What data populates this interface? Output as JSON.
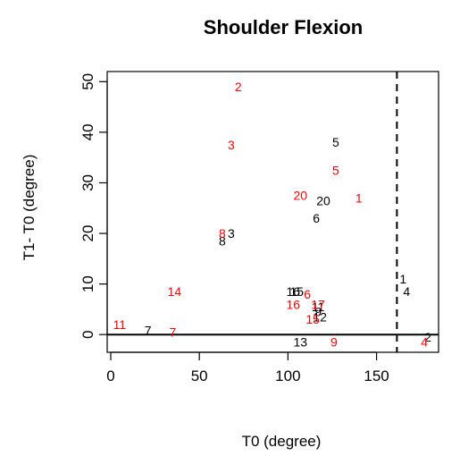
{
  "chart_data": {
    "type": "scatter",
    "title": "Shoulder Flexion",
    "xlabel": "T0 (degree)",
    "ylabel": "T1- T0 (degree)",
    "xlim": [
      -2,
      185
    ],
    "ylim": [
      -3.5,
      52
    ],
    "xticks": [
      "0",
      "50",
      "100",
      "150"
    ],
    "xtick_values": [
      0,
      50,
      100,
      150
    ],
    "yticks": [
      "0",
      "10",
      "20",
      "30",
      "40",
      "50"
    ],
    "ytick_values": [
      0,
      10,
      20,
      30,
      40,
      50
    ],
    "grid": false,
    "reference_lines": [
      {
        "orientation": "horizontal",
        "value": 0,
        "style": "solid"
      },
      {
        "orientation": "vertical",
        "value": 161.5,
        "style": "dashed"
      }
    ],
    "colors": {
      "group_black": "#000000",
      "group_red": "#ff0000"
    },
    "series": [
      {
        "color": "#000000",
        "points": [
          {
            "label": "1",
            "x": 165,
            "y": 11
          },
          {
            "label": "2",
            "x": 179,
            "y": -0.5
          },
          {
            "label": "3",
            "x": 68,
            "y": 20
          },
          {
            "label": "4",
            "x": 167,
            "y": 8.5
          },
          {
            "label": "5",
            "x": 127,
            "y": 38
          },
          {
            "label": "6",
            "x": 116,
            "y": 23
          },
          {
            "label": "7",
            "x": 21,
            "y": 0.8
          },
          {
            "label": "8",
            "x": 63,
            "y": 18.5
          },
          {
            "label": "9",
            "x": 117,
            "y": 4.5
          },
          {
            "label": "11",
            "x": 117,
            "y": 5.5
          },
          {
            "label": "12",
            "x": 118,
            "y": 3.5
          },
          {
            "label": "13",
            "x": 107,
            "y": -1.5
          },
          {
            "label": "15",
            "x": 105,
            "y": 8.5
          },
          {
            "label": "16",
            "x": 103,
            "y": 8.5
          },
          {
            "label": "20",
            "x": 120,
            "y": 26.5
          }
        ]
      },
      {
        "color": "#ff0000",
        "points": [
          {
            "label": "1",
            "x": 140,
            "y": 27
          },
          {
            "label": "2",
            "x": 72,
            "y": 49
          },
          {
            "label": "3",
            "x": 68,
            "y": 37.5
          },
          {
            "label": "4",
            "x": 177,
            "y": -1.5
          },
          {
            "label": "5",
            "x": 127,
            "y": 32.5
          },
          {
            "label": "6",
            "x": 111,
            "y": 8
          },
          {
            "label": "7",
            "x": 35,
            "y": 0.5
          },
          {
            "label": "8",
            "x": 63,
            "y": 20
          },
          {
            "label": "9",
            "x": 126,
            "y": -1.5
          },
          {
            "label": "11",
            "x": 5,
            "y": 2
          },
          {
            "label": "14",
            "x": 36,
            "y": 8.5
          },
          {
            "label": "15",
            "x": 114,
            "y": 3
          },
          {
            "label": "16",
            "x": 103,
            "y": 6
          },
          {
            "label": "17",
            "x": 117,
            "y": 6
          },
          {
            "label": "20",
            "x": 107,
            "y": 27.5
          }
        ]
      }
    ]
  }
}
